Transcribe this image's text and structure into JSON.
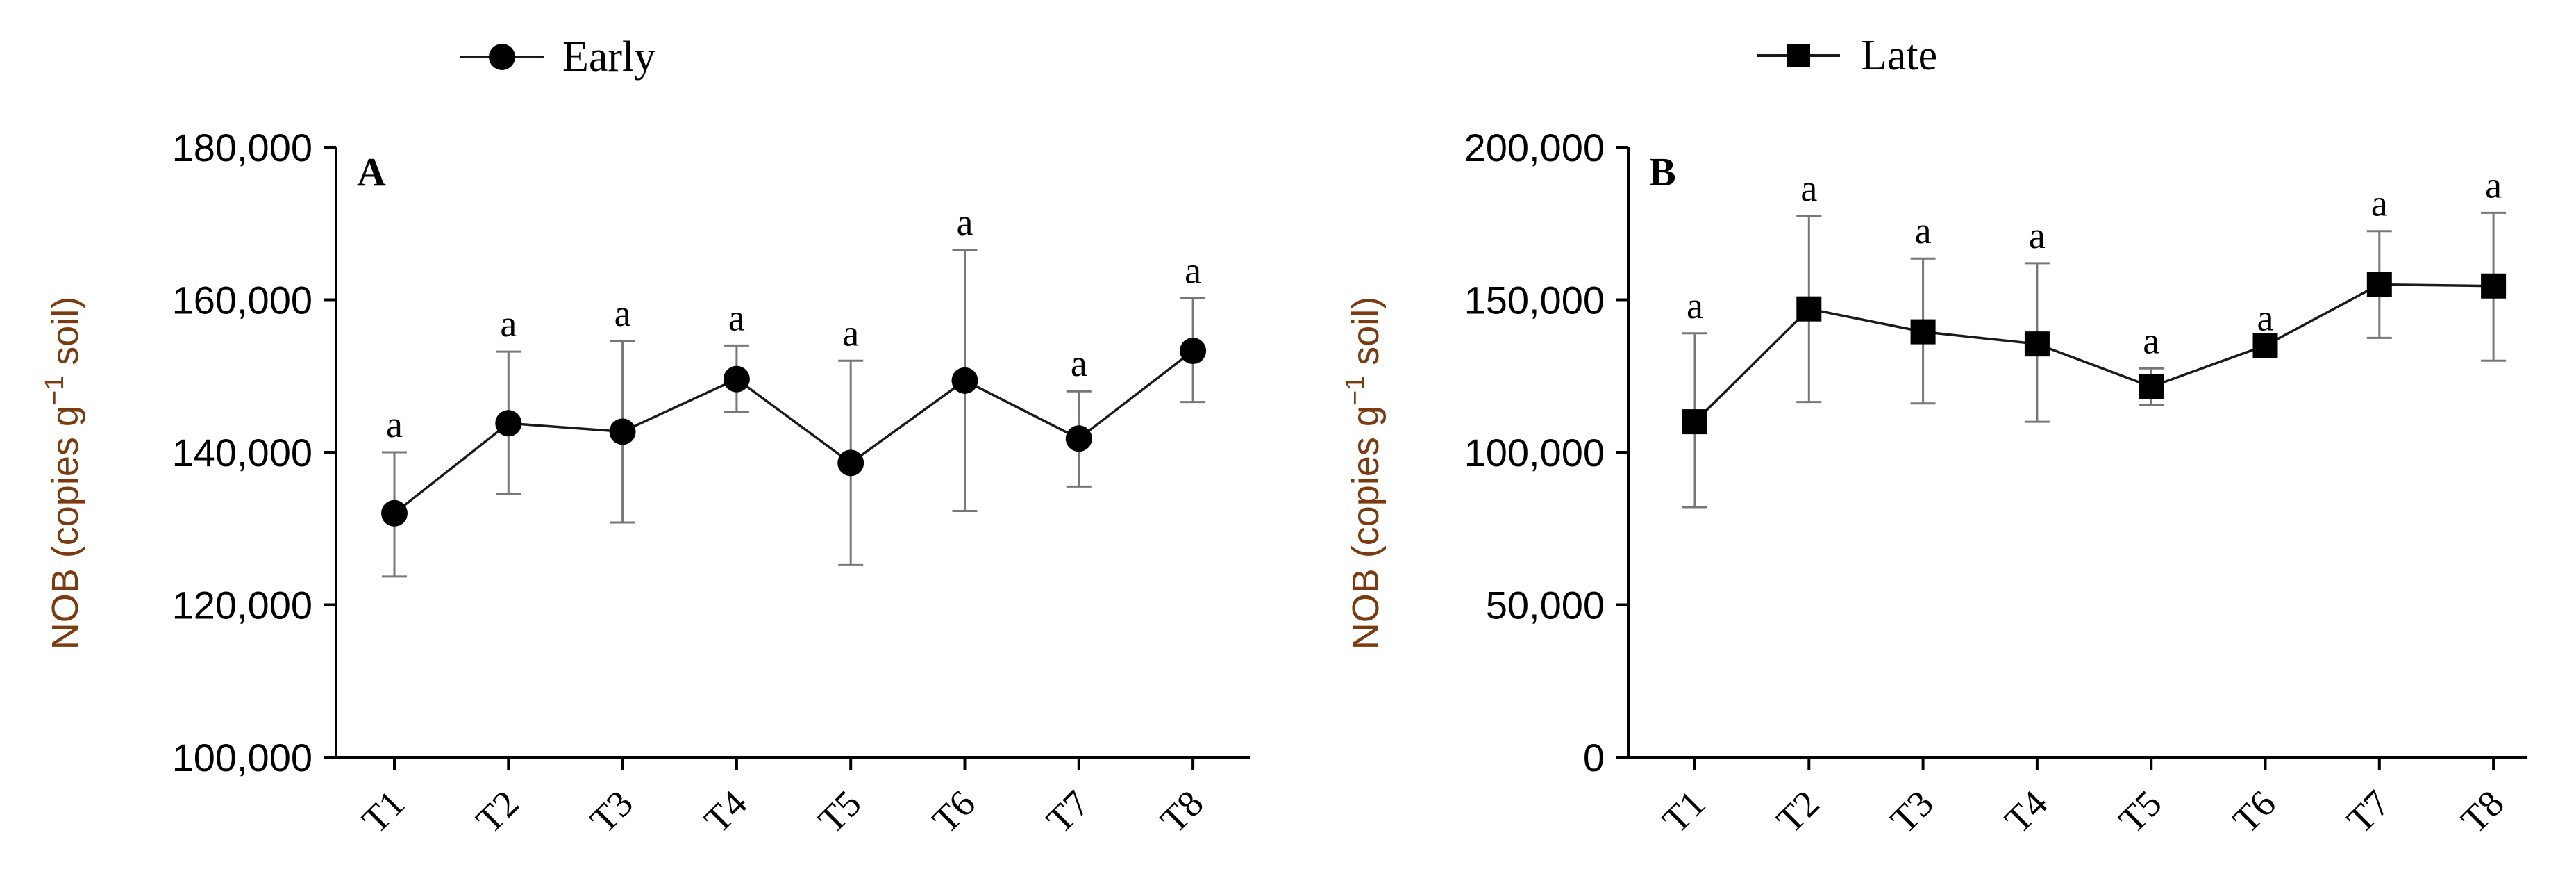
{
  "chart_data": [
    {
      "type": "line",
      "panel_label": "A",
      "legend": {
        "label": "Early",
        "marker": "circle",
        "placement": "top-center"
      },
      "ylabel_main": "NOB (copies g",
      "ylabel_sup": "−1",
      "ylabel_tail": " soil)",
      "ylim": [
        100000,
        180000
      ],
      "yticks": [
        100000,
        120000,
        140000,
        160000,
        180000
      ],
      "ytick_labels": [
        "100,000",
        "120,000",
        "140,000",
        "160,000",
        "180,000"
      ],
      "categories": [
        "T1",
        "T2",
        "T3",
        "T4",
        "T5",
        "T6",
        "T7",
        "T8"
      ],
      "series": [
        {
          "name": "Early",
          "values": [
            132000,
            143800,
            142700,
            149600,
            138600,
            149400,
            141800,
            153300
          ],
          "err_low": [
            123700,
            134500,
            130800,
            145300,
            125200,
            132300,
            135500,
            146600
          ],
          "err_high": [
            140000,
            153200,
            154600,
            154000,
            152000,
            166500,
            148000,
            160200
          ],
          "sig_letters": [
            "a",
            "a",
            "a",
            "a",
            "a",
            "a",
            "a",
            "a"
          ]
        }
      ],
      "grid": false
    },
    {
      "type": "line",
      "panel_label": "B",
      "legend": {
        "label": "Late",
        "marker": "square",
        "placement": "top-center"
      },
      "ylabel_main": "NOB (copies g",
      "ylabel_sup": "−1",
      "ylabel_tail": " soil)",
      "ylim": [
        0,
        200000
      ],
      "yticks": [
        0,
        50000,
        100000,
        150000,
        200000
      ],
      "ytick_labels": [
        "0",
        "50,000",
        "100,000",
        "150,000",
        "200,000"
      ],
      "categories": [
        "T1",
        "T2",
        "T3",
        "T4",
        "T5",
        "T6",
        "T7",
        "T8"
      ],
      "series": [
        {
          "name": "Late",
          "values": [
            110000,
            147000,
            139500,
            135500,
            121500,
            135000,
            155000,
            154500
          ],
          "err_low": [
            82000,
            116500,
            116000,
            110000,
            115500,
            135000,
            137500,
            130000
          ],
          "err_high": [
            139000,
            177500,
            163500,
            162000,
            127500,
            135000,
            172500,
            178500
          ],
          "sig_letters": [
            "a",
            "a",
            "a",
            "a",
            "a",
            "a",
            "a",
            "a"
          ]
        }
      ],
      "grid": false
    }
  ],
  "colors": {
    "axis": "#000000",
    "line": "#1a1a1a",
    "errorbar": "#777777",
    "ylabel": "#7a3b10",
    "text": "#000000"
  }
}
